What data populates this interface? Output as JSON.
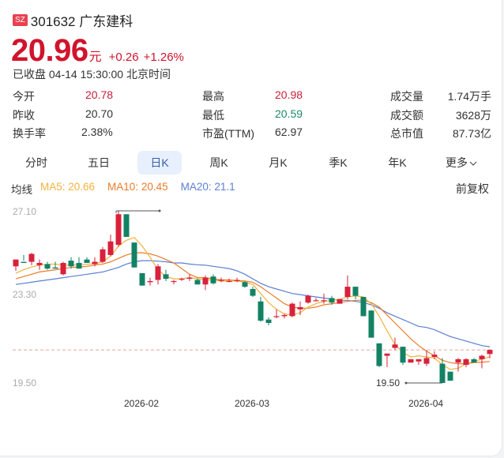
{
  "header": {
    "market_badge": "SZ",
    "title": "301632 广东建科",
    "price": "20.96",
    "unit": "元",
    "change": "+0.26",
    "change_pct": "+1.26%",
    "status": "已收盘 04-14 15:30:00 北京时间"
  },
  "stats": [
    {
      "label": "今开",
      "value": "20.78",
      "color": "red"
    },
    {
      "label": "昨收",
      "value": "20.70",
      "color": "normal"
    },
    {
      "label": "换手率",
      "value": "2.38%",
      "color": "normal"
    },
    {
      "label": "最高",
      "value": "20.98",
      "color": "red"
    },
    {
      "label": "最低",
      "value": "20.59",
      "color": "green"
    },
    {
      "label": "市盈(TTM)",
      "value": "62.97",
      "color": "normal"
    },
    {
      "label": "成交量",
      "value": "1.74万手",
      "color": "normal"
    },
    {
      "label": "成交额",
      "value": "3628万",
      "color": "normal"
    },
    {
      "label": "总市值",
      "value": "87.73亿",
      "color": "normal"
    }
  ],
  "tabs": [
    {
      "label": "分时",
      "active": false
    },
    {
      "label": "五日",
      "active": false
    },
    {
      "label": "日K",
      "active": true
    },
    {
      "label": "周K",
      "active": false
    },
    {
      "label": "月K",
      "active": false
    },
    {
      "label": "季K",
      "active": false
    },
    {
      "label": "年K",
      "active": false
    },
    {
      "label": "更多",
      "active": false
    }
  ],
  "ma_legend": {
    "label": "均线",
    "ma5": "MA5: 20.66",
    "ma10": "MA10: 20.45",
    "ma20": "MA20: 21.1"
  },
  "adjust_label": "前复权",
  "colors": {
    "up": "#d8213b",
    "down": "#138264",
    "ma5": "#f0b33c",
    "ma10": "#ea7c2a",
    "ma20": "#5b7fd2",
    "price_red": "#d0142c"
  },
  "chart_data": {
    "type": "candlestick",
    "title": "301632 广东建科 日K",
    "y_ticks": [
      "27.10",
      "23.30",
      "19.50"
    ],
    "ylim": [
      19.5,
      27.1
    ],
    "x_ticks": [
      {
        "label": "2026-02",
        "index": 17
      },
      {
        "label": "2026-03",
        "index": 31
      },
      {
        "label": "2026-04",
        "index": 52
      }
    ],
    "reference_line": 20.96,
    "max_marker": {
      "value": 27.1,
      "index": 13,
      "label": ""
    },
    "min_marker": {
      "value": 19.5,
      "index": 54,
      "label": "19.50"
    },
    "candles": [
      [
        24.65,
        24.95,
        24.45,
        24.95
      ],
      [
        24.85,
        25.15,
        24.9,
        24.8
      ],
      [
        24.85,
        25.25,
        24.7,
        25.2
      ],
      [
        24.7,
        24.95,
        24.5,
        24.8
      ],
      [
        24.75,
        24.85,
        24.5,
        24.55
      ],
      [
        24.6,
        24.85,
        24.55,
        24.55
      ],
      [
        24.3,
        24.85,
        24.25,
        24.8
      ],
      [
        24.9,
        25.05,
        24.55,
        24.65
      ],
      [
        24.8,
        25.05,
        24.55,
        24.55
      ],
      [
        24.95,
        25.05,
        24.85,
        24.8
      ],
      [
        24.75,
        25.05,
        24.65,
        24.85
      ],
      [
        24.85,
        25.5,
        24.8,
        25.4
      ],
      [
        25.15,
        26.05,
        25.1,
        25.75
      ],
      [
        25.6,
        27.1,
        25.5,
        26.95
      ],
      [
        26.95,
        26.95,
        25.95,
        25.95
      ],
      [
        25.7,
        25.7,
        24.6,
        24.6
      ],
      [
        24.35,
        24.35,
        23.8,
        23.8
      ],
      [
        23.95,
        24.15,
        23.8,
        24.0
      ],
      [
        24.05,
        24.75,
        23.85,
        24.65
      ],
      [
        24.3,
        24.5,
        24.0,
        24.1
      ],
      [
        24.0,
        24.05,
        23.85,
        24.0
      ],
      [
        24.1,
        24.15,
        24.0,
        24.1
      ],
      [
        24.1,
        24.3,
        24.0,
        24.15
      ],
      [
        24.05,
        24.1,
        23.85,
        23.85
      ],
      [
        23.85,
        24.25,
        23.6,
        24.15
      ],
      [
        24.2,
        24.3,
        23.85,
        23.9
      ],
      [
        24.05,
        24.15,
        23.95,
        24.05
      ],
      [
        24.0,
        24.1,
        23.95,
        24.0
      ],
      [
        24.0,
        24.15,
        23.95,
        24.05
      ],
      [
        23.95,
        24.0,
        23.7,
        23.75
      ],
      [
        23.65,
        23.75,
        23.3,
        23.35
      ],
      [
        23.1,
        23.3,
        22.2,
        22.25
      ],
      [
        22.3,
        22.4,
        22.05,
        22.15
      ],
      [
        22.45,
        22.75,
        22.35,
        22.45
      ],
      [
        22.45,
        22.55,
        22.35,
        22.5
      ],
      [
        22.45,
        23.05,
        22.4,
        23.0
      ],
      [
        22.75,
        23.1,
        22.5,
        22.85
      ],
      [
        23.05,
        23.4,
        23.0,
        23.35
      ],
      [
        23.15,
        23.25,
        23.1,
        23.15
      ],
      [
        23.15,
        23.45,
        23.0,
        23.15
      ],
      [
        23.25,
        23.35,
        22.95,
        23.05
      ],
      [
        23.0,
        23.2,
        23.0,
        23.2
      ],
      [
        23.3,
        24.25,
        23.2,
        23.75
      ],
      [
        23.75,
        23.75,
        23.2,
        23.35
      ],
      [
        23.3,
        23.3,
        22.45,
        22.45
      ],
      [
        22.7,
        22.7,
        21.5,
        21.5
      ],
      [
        21.25,
        21.25,
        20.2,
        20.25
      ],
      [
        20.7,
        20.8,
        20.2,
        20.8
      ],
      [
        21.05,
        21.5,
        20.95,
        21.2
      ],
      [
        21.1,
        21.1,
        20.3,
        20.4
      ],
      [
        20.4,
        20.55,
        20.4,
        20.55
      ],
      [
        20.45,
        20.55,
        20.3,
        20.55
      ],
      [
        20.35,
        20.95,
        20.25,
        20.6
      ],
      [
        20.65,
        20.9,
        20.55,
        20.75
      ],
      [
        20.35,
        20.6,
        19.5,
        19.5
      ],
      [
        20.0,
        20.0,
        19.6,
        19.6
      ],
      [
        20.4,
        20.6,
        20.0,
        20.55
      ],
      [
        20.3,
        20.6,
        20.2,
        20.55
      ],
      [
        20.55,
        20.6,
        20.4,
        20.4
      ],
      [
        20.55,
        20.75,
        20.15,
        20.7
      ],
      [
        20.78,
        20.98,
        20.59,
        20.96
      ]
    ],
    "ma5": [
      24.35,
      24.5,
      24.62,
      24.7,
      24.74,
      24.75,
      24.7,
      24.7,
      24.72,
      24.74,
      24.76,
      24.85,
      25.1,
      25.55,
      25.8,
      25.92,
      25.55,
      25.05,
      24.5,
      24.2,
      24.1,
      24.1,
      24.15,
      24.1,
      24.05,
      24.05,
      24.0,
      24.0,
      24.0,
      23.95,
      23.85,
      23.45,
      23.05,
      22.75,
      22.55,
      22.5,
      22.6,
      22.85,
      23.0,
      23.1,
      23.15,
      23.2,
      23.3,
      23.35,
      23.3,
      23.0,
      22.45,
      21.8,
      21.2,
      20.85,
      20.65,
      20.7,
      20.65,
      20.6,
      20.3,
      20.1,
      20.15,
      20.35,
      20.45,
      20.55,
      20.66
    ],
    "ma10": [
      24.1,
      24.2,
      24.3,
      24.4,
      24.45,
      24.5,
      24.55,
      24.6,
      24.62,
      24.65,
      24.7,
      24.75,
      24.85,
      25.0,
      25.15,
      25.25,
      25.25,
      25.2,
      25.1,
      24.95,
      24.8,
      24.55,
      24.3,
      24.15,
      24.15,
      24.1,
      24.05,
      24.05,
      24.02,
      24.0,
      23.95,
      23.75,
      23.5,
      23.25,
      23.0,
      22.85,
      22.8,
      22.8,
      22.85,
      22.95,
      23.0,
      23.05,
      23.1,
      23.15,
      23.15,
      23.05,
      22.85,
      22.5,
      22.15,
      21.8,
      21.45,
      21.15,
      20.9,
      20.7,
      20.5,
      20.4,
      20.35,
      20.35,
      20.4,
      20.42,
      20.45
    ],
    "ma20": [
      23.85,
      23.9,
      23.95,
      24.0,
      24.05,
      24.1,
      24.15,
      24.2,
      24.25,
      24.3,
      24.35,
      24.4,
      24.5,
      24.6,
      24.75,
      24.85,
      24.9,
      24.9,
      24.88,
      24.85,
      24.8,
      24.8,
      24.75,
      24.72,
      24.7,
      24.65,
      24.6,
      24.55,
      24.45,
      24.3,
      24.1,
      23.9,
      23.75,
      23.65,
      23.55,
      23.45,
      23.4,
      23.35,
      23.3,
      23.25,
      23.2,
      23.15,
      23.15,
      23.1,
      23.05,
      22.95,
      22.8,
      22.6,
      22.45,
      22.3,
      22.15,
      22.0,
      21.95,
      21.85,
      21.7,
      21.55,
      21.45,
      21.35,
      21.25,
      21.15,
      21.1
    ]
  }
}
